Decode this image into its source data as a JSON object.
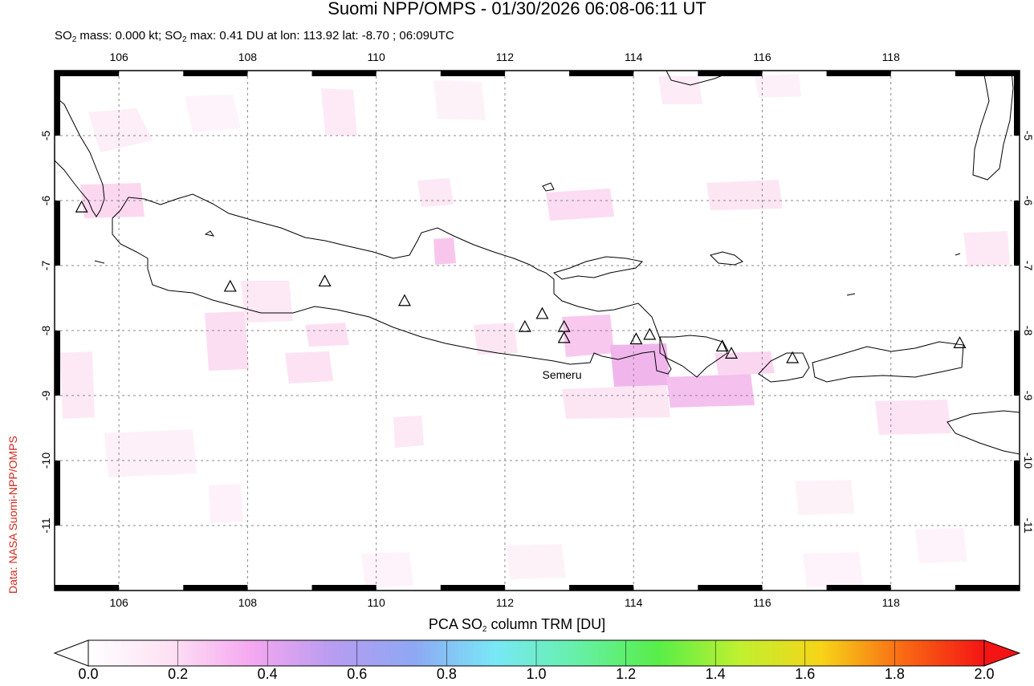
{
  "title": "Suomi NPP/OMPS - 01/30/2026 06:08-06:11 UT",
  "subtitle": {
    "p1": "SO",
    "s1": "2",
    "p2": " mass: 0.000 kt; SO",
    "s2": "2",
    "p3": " max: 0.41 DU at lon: 113.92 lat: -8.70 ; 06:09UTC"
  },
  "credit": "Data: NASA Suomi-NPP/OMPS",
  "map": {
    "lon_range": [
      105.0,
      120.0
    ],
    "lat_range": [
      -12.0,
      -4.0
    ],
    "lon_ticks": [
      "106",
      "108",
      "110",
      "112",
      "114",
      "116",
      "118"
    ],
    "lat_ticks": [
      "-5",
      "-6",
      "-7",
      "-8",
      "-9",
      "-10",
      "-11"
    ],
    "grid": "dotted",
    "volcano_label": "Semeru",
    "volcanoes": [
      {
        "lon": 105.42,
        "lat": -6.1
      },
      {
        "lon": 107.73,
        "lat": -7.32
      },
      {
        "lon": 109.2,
        "lat": -7.24
      },
      {
        "lon": 110.44,
        "lat": -7.54
      },
      {
        "lon": 112.31,
        "lat": -7.94
      },
      {
        "lon": 112.58,
        "lat": -7.74
      },
      {
        "lon": 112.92,
        "lat": -7.94
      },
      {
        "lon": 112.92,
        "lat": -8.11
      },
      {
        "lon": 114.04,
        "lat": -8.13
      },
      {
        "lon": 114.25,
        "lat": -8.06
      },
      {
        "lon": 115.38,
        "lat": -8.24
      },
      {
        "lon": 115.52,
        "lat": -8.35
      },
      {
        "lon": 116.47,
        "lat": -8.42
      },
      {
        "lon": 119.07,
        "lat": -8.19
      }
    ]
  },
  "colorbar": {
    "title_p1": "PCA SO",
    "title_s": "2",
    "title_p2": " column TRM [DU]",
    "labels": [
      "0.0",
      "0.2",
      "0.4",
      "0.6",
      "0.8",
      "1.0",
      "1.2",
      "1.4",
      "1.6",
      "1.8",
      "2.0"
    ],
    "range": [
      0.0,
      2.0
    ],
    "colors": [
      "#ffffff",
      "#fde1f4",
      "#f5a8f0",
      "#b89cf0",
      "#8ea8f4",
      "#78e8f6",
      "#66f0a8",
      "#58ee48",
      "#c0f030",
      "#f7d418",
      "#f86a14",
      "#f41414"
    ]
  }
}
